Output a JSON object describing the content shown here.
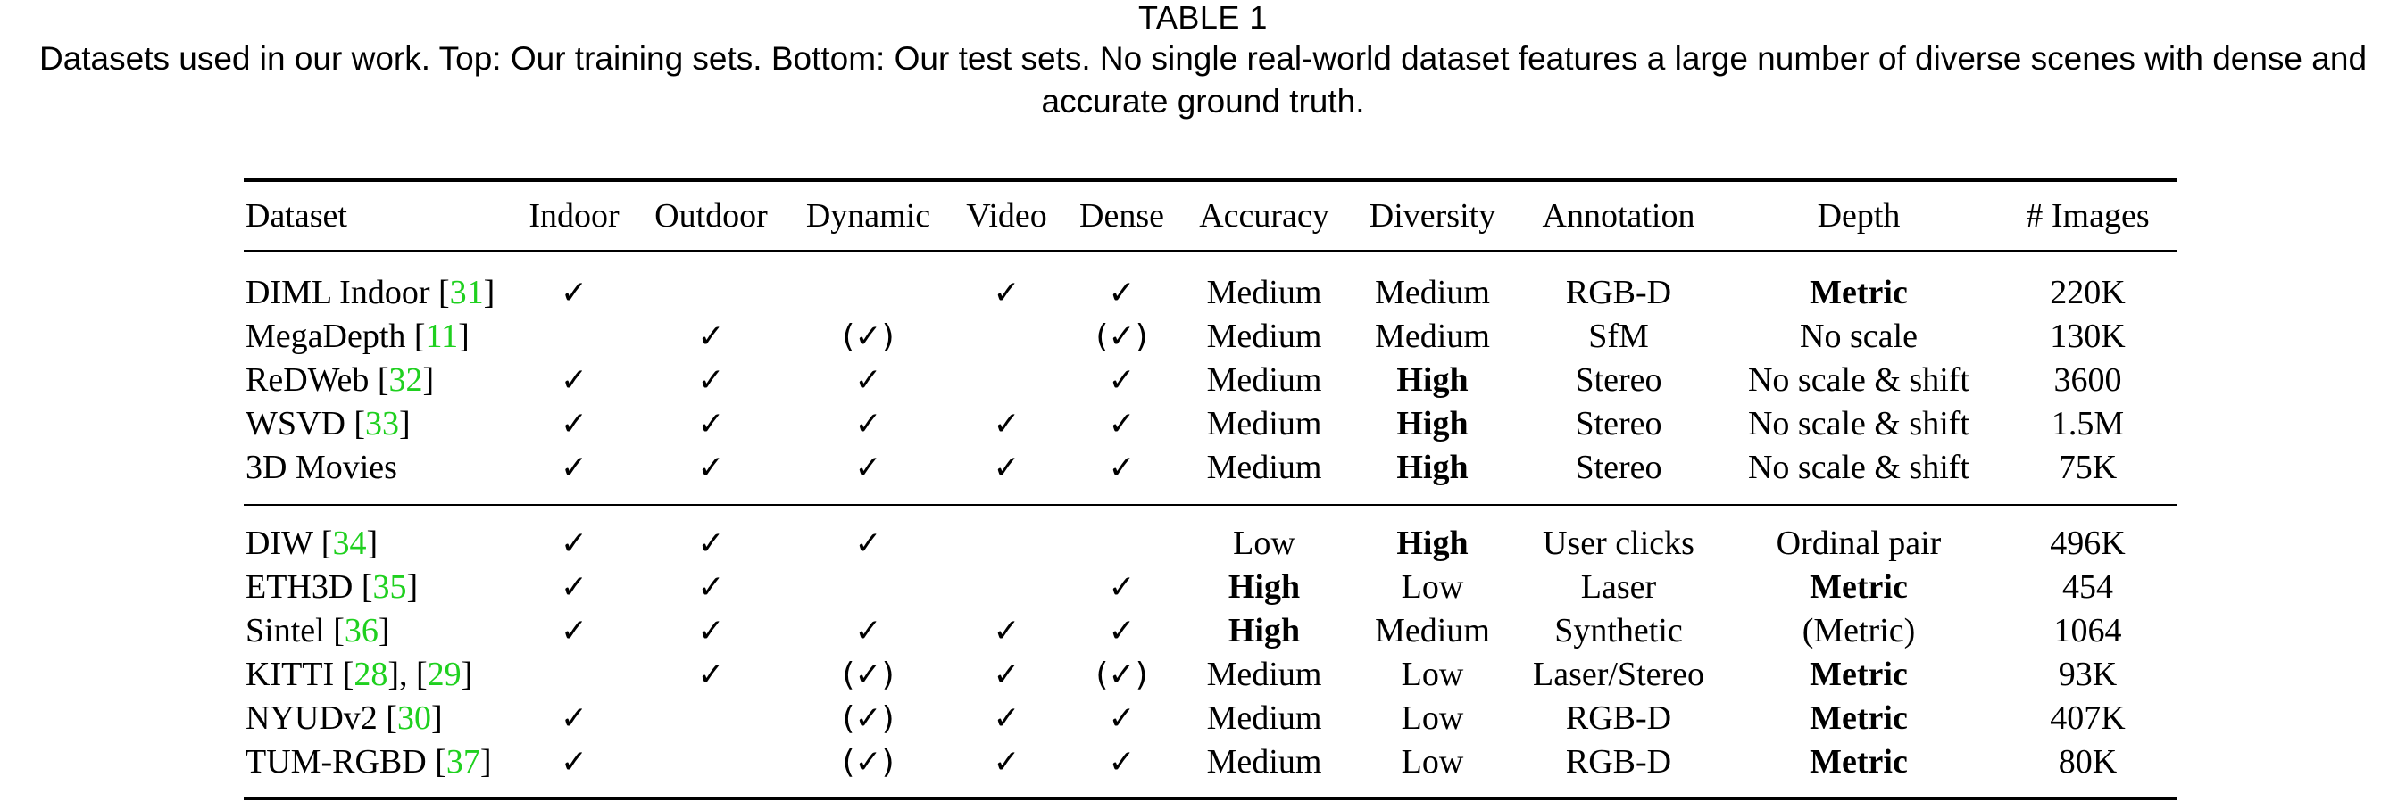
{
  "caption": {
    "label": "TABLE 1",
    "text": "Datasets used in our work. Top: Our training sets. Bottom: Our test sets. No single real-world dataset features a large number of diverse scenes with dense and accurate ground truth."
  },
  "table": {
    "columns": [
      "Dataset",
      "Indoor",
      "Outdoor",
      "Dynamic",
      "Video",
      "Dense",
      "Accuracy",
      "Diversity",
      "Annotation",
      "Depth",
      "# Images"
    ],
    "groups": [
      {
        "name": "training",
        "rows": [
          {
            "name": "DIML Indoor",
            "cite": [
              "31"
            ],
            "indoor": "✓",
            "outdoor": "",
            "dynamic": "",
            "video": "✓",
            "dense": "✓",
            "accuracy": "Medium",
            "accuracy_bold": false,
            "diversity": "Medium",
            "diversity_bold": false,
            "annotation": "RGB-D",
            "depth": "Metric",
            "depth_bold": true,
            "images": "220K"
          },
          {
            "name": "MegaDepth",
            "cite": [
              "11"
            ],
            "indoor": "",
            "outdoor": "✓",
            "dynamic": "(✓)",
            "video": "",
            "dense": "(✓)",
            "accuracy": "Medium",
            "accuracy_bold": false,
            "diversity": "Medium",
            "diversity_bold": false,
            "annotation": "SfM",
            "depth": "No scale",
            "depth_bold": false,
            "images": "130K"
          },
          {
            "name": "ReDWeb",
            "cite": [
              "32"
            ],
            "indoor": "✓",
            "outdoor": "✓",
            "dynamic": "✓",
            "video": "",
            "dense": "✓",
            "accuracy": "Medium",
            "accuracy_bold": false,
            "diversity": "High",
            "diversity_bold": true,
            "annotation": "Stereo",
            "depth": "No scale & shift",
            "depth_bold": false,
            "images": "3600"
          },
          {
            "name": "WSVD",
            "cite": [
              "33"
            ],
            "indoor": "✓",
            "outdoor": "✓",
            "dynamic": "✓",
            "video": "✓",
            "dense": "✓",
            "accuracy": "Medium",
            "accuracy_bold": false,
            "diversity": "High",
            "diversity_bold": true,
            "annotation": "Stereo",
            "depth": "No scale & shift",
            "depth_bold": false,
            "images": "1.5M"
          },
          {
            "name": "3D Movies",
            "cite": [],
            "indoor": "✓",
            "outdoor": "✓",
            "dynamic": "✓",
            "video": "✓",
            "dense": "✓",
            "accuracy": "Medium",
            "accuracy_bold": false,
            "diversity": "High",
            "diversity_bold": true,
            "annotation": "Stereo",
            "depth": "No scale & shift",
            "depth_bold": false,
            "images": "75K"
          }
        ]
      },
      {
        "name": "test",
        "rows": [
          {
            "name": "DIW",
            "cite": [
              "34"
            ],
            "indoor": "✓",
            "outdoor": "✓",
            "dynamic": "✓",
            "video": "",
            "dense": "",
            "accuracy": "Low",
            "accuracy_bold": false,
            "diversity": "High",
            "diversity_bold": true,
            "annotation": "User clicks",
            "depth": "Ordinal pair",
            "depth_bold": false,
            "images": "496K"
          },
          {
            "name": "ETH3D",
            "cite": [
              "35"
            ],
            "indoor": "✓",
            "outdoor": "✓",
            "dynamic": "",
            "video": "",
            "dense": "✓",
            "accuracy": "High",
            "accuracy_bold": true,
            "diversity": "Low",
            "diversity_bold": false,
            "annotation": "Laser",
            "depth": "Metric",
            "depth_bold": true,
            "images": "454"
          },
          {
            "name": "Sintel",
            "cite": [
              "36"
            ],
            "indoor": "✓",
            "outdoor": "✓",
            "dynamic": "✓",
            "video": "✓",
            "dense": "✓",
            "accuracy": "High",
            "accuracy_bold": true,
            "diversity": "Medium",
            "diversity_bold": false,
            "annotation": "Synthetic",
            "depth": "(Metric)",
            "depth_bold": false,
            "images": "1064"
          },
          {
            "name": "KITTI",
            "cite": [
              "28",
              "29"
            ],
            "indoor": "",
            "outdoor": "✓",
            "dynamic": "(✓)",
            "video": "✓",
            "dense": "(✓)",
            "accuracy": "Medium",
            "accuracy_bold": false,
            "diversity": "Low",
            "diversity_bold": false,
            "annotation": "Laser/Stereo",
            "depth": "Metric",
            "depth_bold": true,
            "images": "93K"
          },
          {
            "name": "NYUDv2",
            "cite": [
              "30"
            ],
            "indoor": "✓",
            "outdoor": "",
            "dynamic": "(✓)",
            "video": "✓",
            "dense": "✓",
            "accuracy": "Medium",
            "accuracy_bold": false,
            "diversity": "Low",
            "diversity_bold": false,
            "annotation": "RGB-D",
            "depth": "Metric",
            "depth_bold": true,
            "images": "407K"
          },
          {
            "name": "TUM-RGBD",
            "cite": [
              "37"
            ],
            "indoor": "✓",
            "outdoor": "",
            "dynamic": "(✓)",
            "video": "✓",
            "dense": "✓",
            "accuracy": "Medium",
            "accuracy_bold": false,
            "diversity": "Low",
            "diversity_bold": false,
            "annotation": "RGB-D",
            "depth": "Metric",
            "depth_bold": true,
            "images": "80K"
          }
        ]
      }
    ]
  }
}
